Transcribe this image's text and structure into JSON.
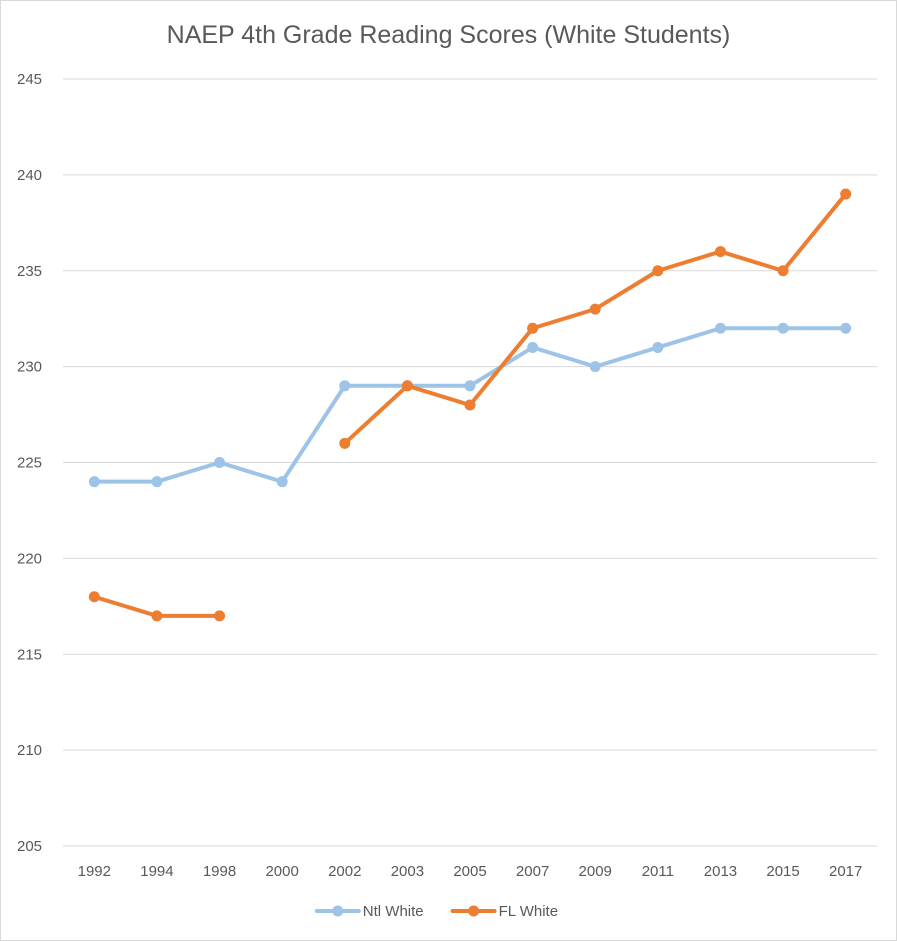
{
  "chart_data": {
    "type": "line",
    "title": "NAEP 4th Grade Reading Scores (White Students)",
    "xlabel": "",
    "ylabel": "",
    "categories": [
      "1992",
      "1994",
      "1998",
      "2000",
      "2002",
      "2003",
      "2005",
      "2007",
      "2009",
      "2011",
      "2013",
      "2015",
      "2017"
    ],
    "ylim": [
      205,
      245
    ],
    "yticks": [
      205,
      210,
      215,
      220,
      225,
      230,
      235,
      240,
      245
    ],
    "grid": true,
    "legend_position": "bottom",
    "series": [
      {
        "name": "Ntl White",
        "color": "#9dc3e6",
        "values": [
          224,
          224,
          225,
          224,
          229,
          229,
          229,
          231,
          230,
          231,
          232,
          232,
          232
        ]
      },
      {
        "name": "FL White",
        "color": "#ed7d31",
        "values": [
          218,
          217,
          217,
          null,
          226,
          229,
          228,
          232,
          233,
          235,
          236,
          235,
          239
        ]
      }
    ]
  }
}
